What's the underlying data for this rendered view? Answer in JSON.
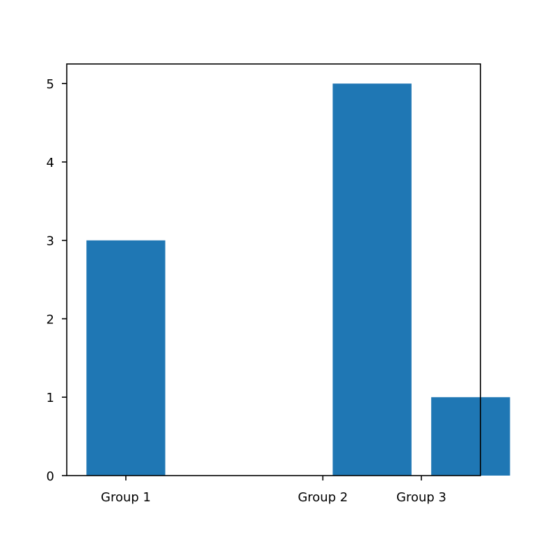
{
  "chart_data": {
    "type": "bar",
    "title": "",
    "xlabel": "",
    "ylabel": "",
    "grid": false,
    "x": [
      1,
      2,
      3.5,
      4.5
    ],
    "categories": [
      "Group 1",
      "",
      "Group 2",
      "Group 3"
    ],
    "values": [
      3,
      0,
      5,
      1
    ],
    "xticks": [
      1,
      3,
      4
    ],
    "xtick_labels": [
      "Group 1",
      "Group 2",
      "Group 3"
    ],
    "ylim": [
      0,
      5.25
    ],
    "yticks": [
      0,
      1,
      2,
      3,
      4,
      5
    ],
    "bar_color": "#1f77b4"
  }
}
